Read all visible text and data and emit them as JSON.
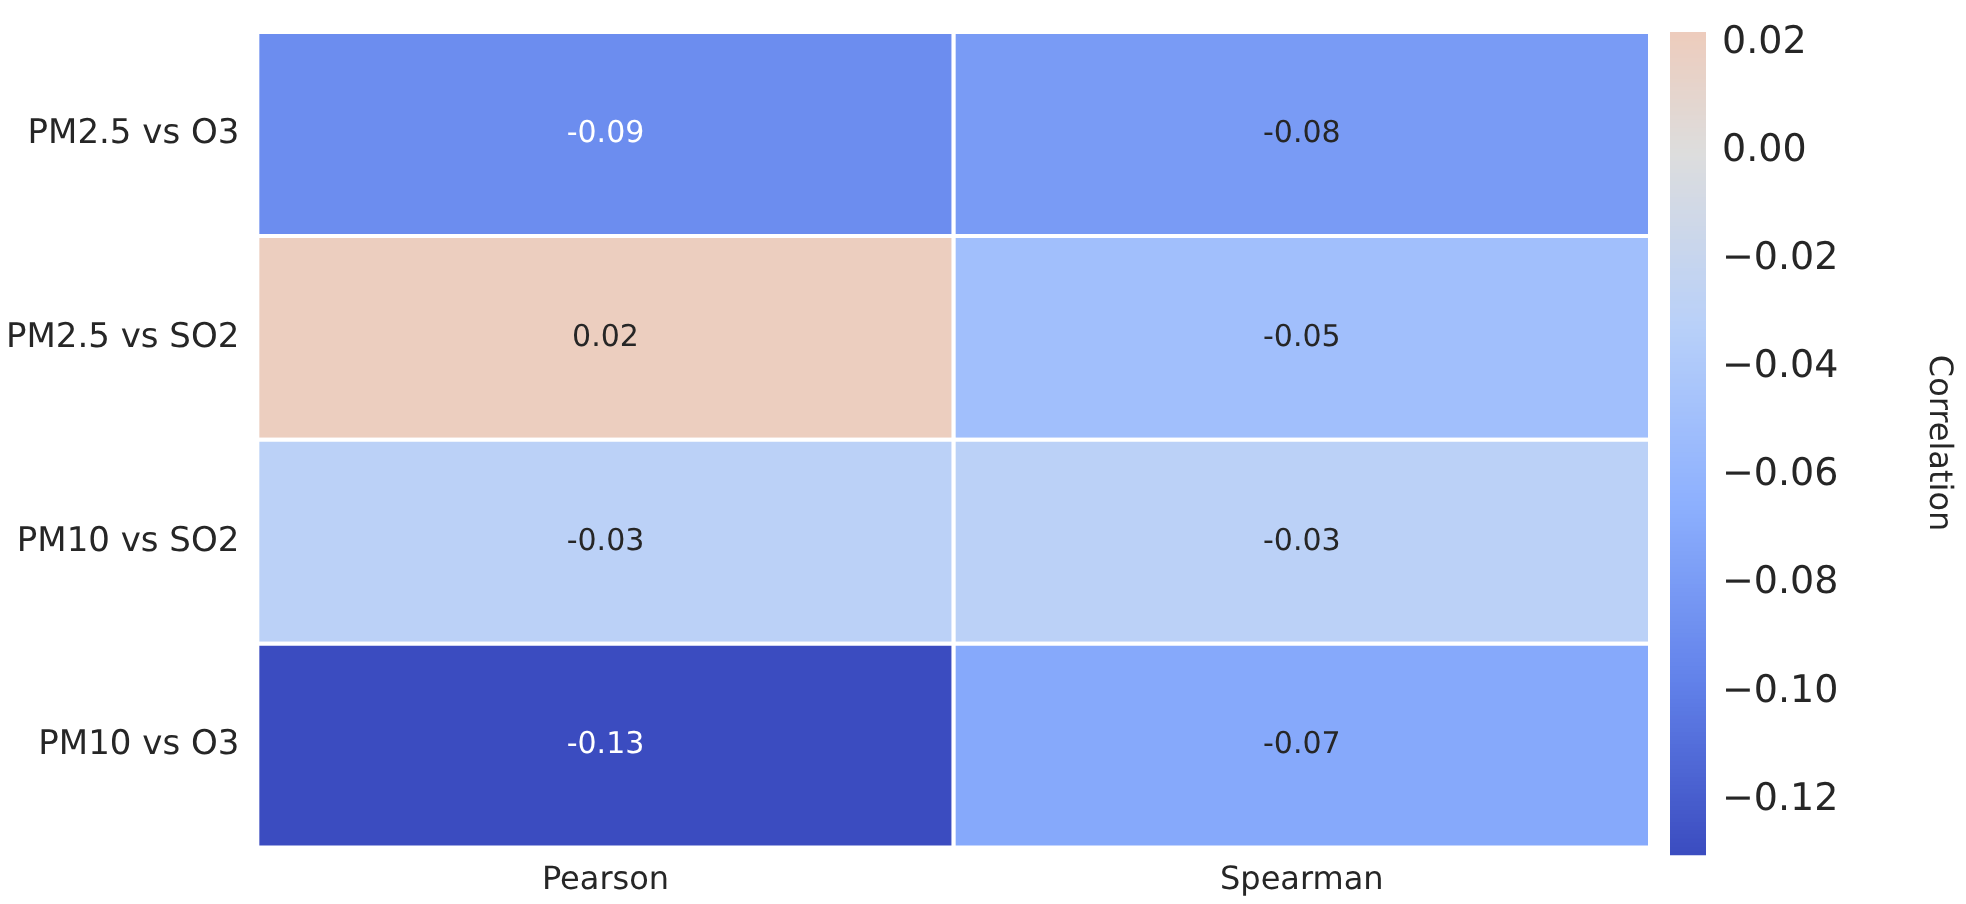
{
  "chart_data": {
    "type": "heatmap",
    "categories": [
      "Pearson",
      "Spearman"
    ],
    "y_categories": [
      "PM2.5 vs O3",
      "PM2.5 vs SO2",
      "PM10 vs SO2",
      "PM10 vs O3"
    ],
    "cells": [
      [
        -0.09,
        -0.08
      ],
      [
        0.02,
        -0.05
      ],
      [
        -0.03,
        -0.03
      ],
      [
        -0.13,
        -0.07
      ]
    ],
    "data_labels": true,
    "clabel": "Correlation",
    "clim": [
      -0.13,
      0.022
    ],
    "cticks": [
      {
        "value": 0.02,
        "label": "0.02"
      },
      {
        "value": 0,
        "label": "0.00"
      },
      {
        "value": -0.02,
        "label": "−0.02"
      },
      {
        "value": -0.04,
        "label": "−0.04"
      },
      {
        "value": -0.06,
        "label": "−0.06"
      },
      {
        "value": -0.08,
        "label": "−0.08"
      },
      {
        "value": -0.1,
        "label": "−0.10"
      },
      {
        "value": -0.12,
        "label": "−0.12"
      }
    ]
  }
}
